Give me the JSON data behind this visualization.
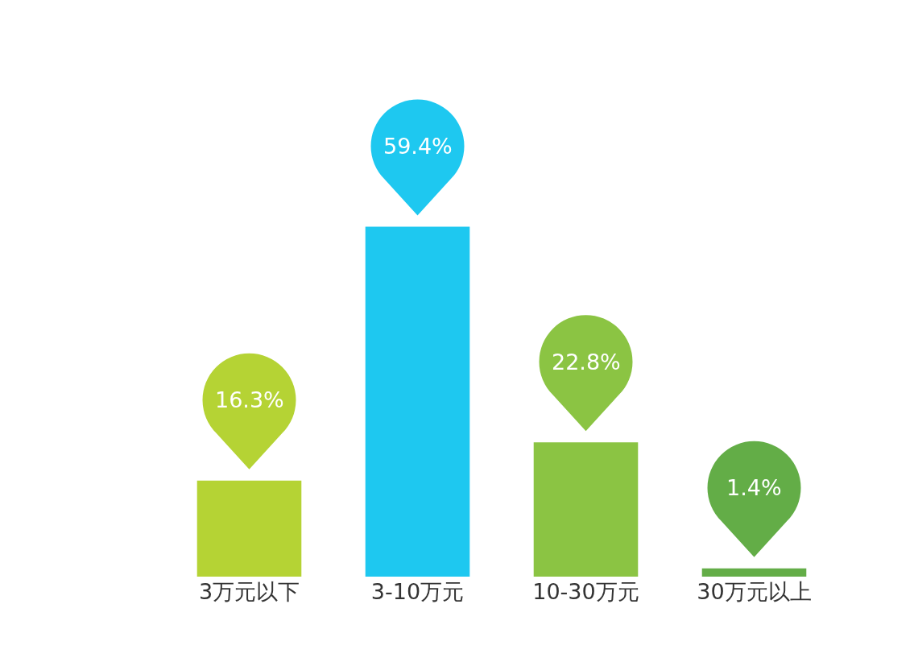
{
  "chart_data": {
    "type": "bar",
    "categories": [
      "3万元以下",
      "3-10万元",
      "10-30万元",
      "30万元以上"
    ],
    "values": [
      16.3,
      59.4,
      22.8,
      1.4
    ],
    "colors": [
      "#b5d334",
      "#1ec8f0",
      "#8bc443",
      "#63ad47"
    ],
    "value_labels": [
      "16.3%",
      "59.4%",
      "22.8%",
      "1.4%"
    ],
    "grid": false,
    "legend": false
  }
}
